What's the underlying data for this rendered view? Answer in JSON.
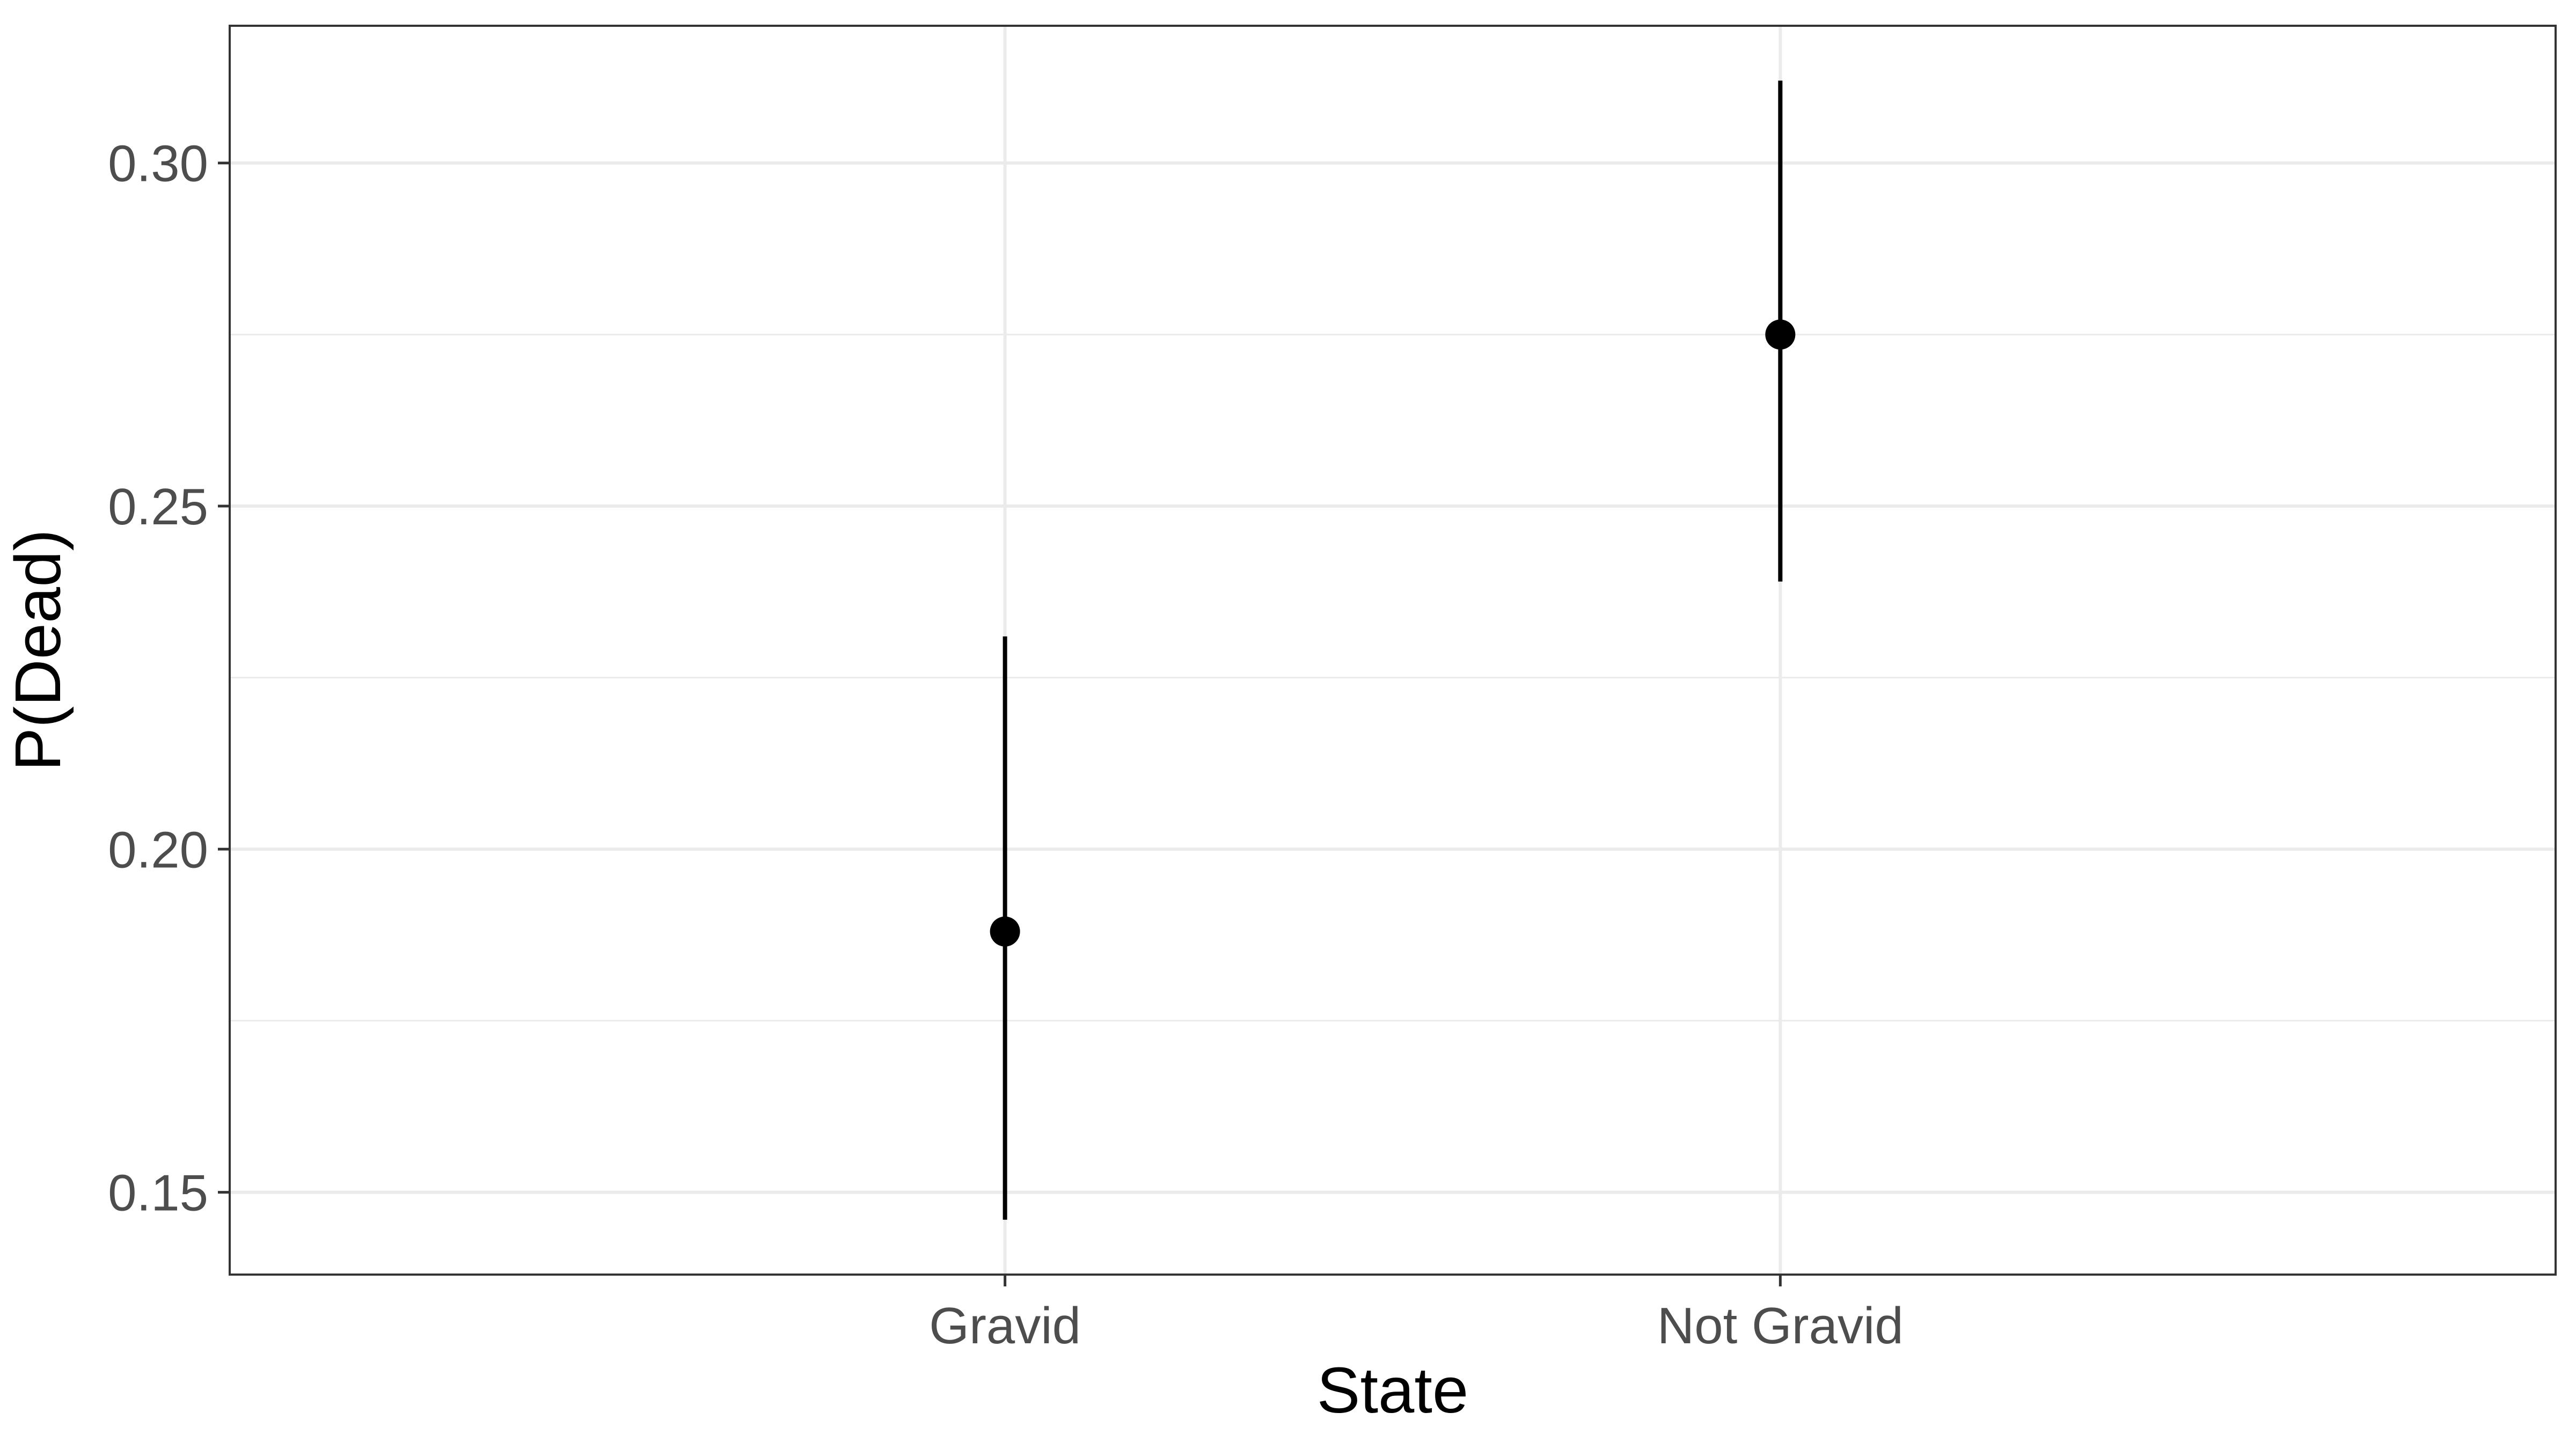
{
  "chart_data": {
    "type": "pointrange",
    "title": "",
    "xlabel": "State",
    "ylabel": "P(Dead)",
    "categories": [
      "Gravid",
      "Not Gravid"
    ],
    "values": [
      0.188,
      0.275
    ],
    "lower": [
      0.146,
      0.239
    ],
    "upper": [
      0.231,
      0.312
    ],
    "ylim": [
      0.138,
      0.32
    ],
    "yticks": [
      0.15,
      0.2,
      0.25,
      0.3
    ],
    "ytick_labels": [
      "0.15",
      "0.20",
      "0.25",
      "0.30"
    ],
    "grid": true,
    "legend": "none",
    "colors": {
      "point": "#000000",
      "errorbar": "#000000",
      "grid_major": "#ebebeb",
      "panel_border": "#333333",
      "tick_text": "#4d4d4d",
      "axis_title": "#000000",
      "background": "#ffffff"
    }
  }
}
